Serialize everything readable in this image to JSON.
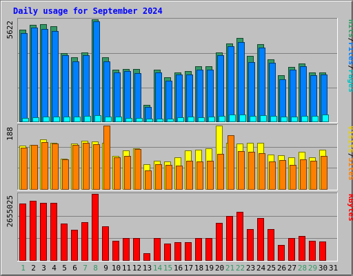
{
  "chart_data": {
    "type": "bar",
    "title": "Daily usage for September 2024",
    "days": [
      "1",
      "2",
      "3",
      "4",
      "5",
      "6",
      "7",
      "8",
      "9",
      "10",
      "11",
      "12",
      "13",
      "14",
      "15",
      "16",
      "17",
      "18",
      "19",
      "20",
      "21",
      "22",
      "23",
      "24",
      "25",
      "26",
      "27",
      "28",
      "29",
      "30",
      "31"
    ],
    "weekend_days": [
      "1",
      "7",
      "8",
      "14",
      "15",
      "21",
      "22",
      "28",
      "29"
    ],
    "panels": [
      {
        "id": "hits",
        "ymax_label": "5622",
        "ymax": 5622,
        "right_labels": [
          "Pages",
          "/",
          "Files",
          "/",
          "Hits"
        ],
        "series": [
          {
            "name": "Hits",
            "color": "#339966",
            "values": [
              5040,
              5330,
              5360,
              5250,
              3750,
              3530,
              3800,
              5622,
              3530,
              2860,
              2890,
              2880,
              930,
              2830,
              2450,
              2700,
              2770,
              3050,
              3020,
              3800,
              4300,
              4600,
              3600,
              4250,
              3400,
              2550,
              2990,
              3200,
              2700,
              2710,
              0
            ]
          },
          {
            "name": "Files",
            "color": "#0080ff",
            "values": [
              4880,
              5150,
              5080,
              4980,
              3630,
              3300,
              3660,
              5500,
              3320,
              2710,
              2770,
              2650,
              790,
              2700,
              2230,
              2570,
              2570,
              2830,
              2850,
              3650,
              4150,
              4380,
              3270,
              4050,
              3220,
              2330,
              2840,
              3020,
              2550,
              2600,
              0
            ]
          },
          {
            "name": "Pages",
            "color": "#00ffff",
            "values": [
              190,
              230,
              250,
              270,
              280,
              250,
              320,
              330,
              270,
              250,
              200,
              180,
              140,
              160,
              170,
              230,
              250,
              230,
              270,
              310,
              390,
              370,
              320,
              350,
              320,
              250,
              280,
              310,
              320,
              380,
              0
            ]
          }
        ]
      },
      {
        "id": "visits",
        "ymax_label": "188",
        "ymax": 188,
        "right_labels": [
          "Sites",
          "/",
          "Visits"
        ],
        "series": [
          {
            "name": "Visits",
            "color": "#ffff00",
            "values": [
              128,
              130,
              147,
              137,
              90,
              134,
              144,
              140,
              137,
              98,
              115,
              120,
              73,
              84,
              82,
              93,
              115,
              117,
              120,
              188,
              137,
              134,
              137,
              137,
              102,
              100,
              93,
              110,
              93,
              117,
              0
            ]
          },
          {
            "name": "Sites",
            "color": "#ff8000",
            "values": [
              122,
              130,
              139,
              134,
              88,
              130,
              136,
              132,
              188,
              93,
              98,
              119,
              56,
              74,
              71,
              70,
              84,
              81,
              83,
              105,
              160,
              112,
              110,
              107,
              81,
              86,
              72,
              87,
              84,
              99,
              0
            ]
          }
        ]
      },
      {
        "id": "kbytes",
        "ymax_label": "2655025",
        "ymax": 2655025,
        "right_labels": [
          "KBytes"
        ],
        "series": [
          {
            "name": "KBytes",
            "color": "#ff0000",
            "values": [
              2273000,
              2390000,
              2303000,
              2303000,
              1460000,
              1228000,
              1518000,
              2655025,
              1342000,
              765000,
              881000,
              881000,
              265000,
              881000,
              664000,
              707000,
              707000,
              881000,
              881000,
              1503000,
              1778000,
              1923000,
              1257000,
              1691000,
              1257000,
              612000,
              881000,
              957000,
              765000,
              750000,
              0
            ]
          }
        ]
      }
    ]
  }
}
